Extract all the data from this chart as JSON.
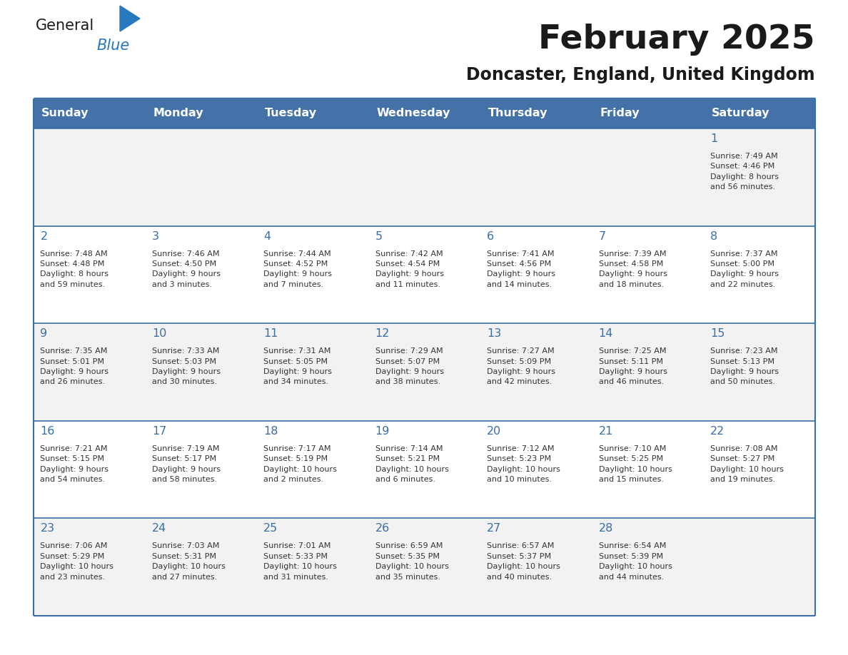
{
  "title": "February 2025",
  "subtitle": "Doncaster, England, United Kingdom",
  "days_of_week": [
    "Sunday",
    "Monday",
    "Tuesday",
    "Wednesday",
    "Thursday",
    "Friday",
    "Saturday"
  ],
  "header_bg": "#4472A8",
  "header_text": "#FFFFFF",
  "cell_bg_odd": "#F2F2F2",
  "cell_bg_even": "#FFFFFF",
  "border_color": "#3A6EA5",
  "day_number_color": "#3A6EA5",
  "text_color": "#333333",
  "logo_general_color": "#1a1a1a",
  "logo_blue_color": "#2878BE",
  "title_color": "#1a1a1a",
  "subtitle_color": "#1a1a1a",
  "calendar_data": [
    [
      {
        "day": "",
        "info": ""
      },
      {
        "day": "",
        "info": ""
      },
      {
        "day": "",
        "info": ""
      },
      {
        "day": "",
        "info": ""
      },
      {
        "day": "",
        "info": ""
      },
      {
        "day": "",
        "info": ""
      },
      {
        "day": "1",
        "info": "Sunrise: 7:49 AM\nSunset: 4:46 PM\nDaylight: 8 hours\nand 56 minutes."
      }
    ],
    [
      {
        "day": "2",
        "info": "Sunrise: 7:48 AM\nSunset: 4:48 PM\nDaylight: 8 hours\nand 59 minutes."
      },
      {
        "day": "3",
        "info": "Sunrise: 7:46 AM\nSunset: 4:50 PM\nDaylight: 9 hours\nand 3 minutes."
      },
      {
        "day": "4",
        "info": "Sunrise: 7:44 AM\nSunset: 4:52 PM\nDaylight: 9 hours\nand 7 minutes."
      },
      {
        "day": "5",
        "info": "Sunrise: 7:42 AM\nSunset: 4:54 PM\nDaylight: 9 hours\nand 11 minutes."
      },
      {
        "day": "6",
        "info": "Sunrise: 7:41 AM\nSunset: 4:56 PM\nDaylight: 9 hours\nand 14 minutes."
      },
      {
        "day": "7",
        "info": "Sunrise: 7:39 AM\nSunset: 4:58 PM\nDaylight: 9 hours\nand 18 minutes."
      },
      {
        "day": "8",
        "info": "Sunrise: 7:37 AM\nSunset: 5:00 PM\nDaylight: 9 hours\nand 22 minutes."
      }
    ],
    [
      {
        "day": "9",
        "info": "Sunrise: 7:35 AM\nSunset: 5:01 PM\nDaylight: 9 hours\nand 26 minutes."
      },
      {
        "day": "10",
        "info": "Sunrise: 7:33 AM\nSunset: 5:03 PM\nDaylight: 9 hours\nand 30 minutes."
      },
      {
        "day": "11",
        "info": "Sunrise: 7:31 AM\nSunset: 5:05 PM\nDaylight: 9 hours\nand 34 minutes."
      },
      {
        "day": "12",
        "info": "Sunrise: 7:29 AM\nSunset: 5:07 PM\nDaylight: 9 hours\nand 38 minutes."
      },
      {
        "day": "13",
        "info": "Sunrise: 7:27 AM\nSunset: 5:09 PM\nDaylight: 9 hours\nand 42 minutes."
      },
      {
        "day": "14",
        "info": "Sunrise: 7:25 AM\nSunset: 5:11 PM\nDaylight: 9 hours\nand 46 minutes."
      },
      {
        "day": "15",
        "info": "Sunrise: 7:23 AM\nSunset: 5:13 PM\nDaylight: 9 hours\nand 50 minutes."
      }
    ],
    [
      {
        "day": "16",
        "info": "Sunrise: 7:21 AM\nSunset: 5:15 PM\nDaylight: 9 hours\nand 54 minutes."
      },
      {
        "day": "17",
        "info": "Sunrise: 7:19 AM\nSunset: 5:17 PM\nDaylight: 9 hours\nand 58 minutes."
      },
      {
        "day": "18",
        "info": "Sunrise: 7:17 AM\nSunset: 5:19 PM\nDaylight: 10 hours\nand 2 minutes."
      },
      {
        "day": "19",
        "info": "Sunrise: 7:14 AM\nSunset: 5:21 PM\nDaylight: 10 hours\nand 6 minutes."
      },
      {
        "day": "20",
        "info": "Sunrise: 7:12 AM\nSunset: 5:23 PM\nDaylight: 10 hours\nand 10 minutes."
      },
      {
        "day": "21",
        "info": "Sunrise: 7:10 AM\nSunset: 5:25 PM\nDaylight: 10 hours\nand 15 minutes."
      },
      {
        "day": "22",
        "info": "Sunrise: 7:08 AM\nSunset: 5:27 PM\nDaylight: 10 hours\nand 19 minutes."
      }
    ],
    [
      {
        "day": "23",
        "info": "Sunrise: 7:06 AM\nSunset: 5:29 PM\nDaylight: 10 hours\nand 23 minutes."
      },
      {
        "day": "24",
        "info": "Sunrise: 7:03 AM\nSunset: 5:31 PM\nDaylight: 10 hours\nand 27 minutes."
      },
      {
        "day": "25",
        "info": "Sunrise: 7:01 AM\nSunset: 5:33 PM\nDaylight: 10 hours\nand 31 minutes."
      },
      {
        "day": "26",
        "info": "Sunrise: 6:59 AM\nSunset: 5:35 PM\nDaylight: 10 hours\nand 35 minutes."
      },
      {
        "day": "27",
        "info": "Sunrise: 6:57 AM\nSunset: 5:37 PM\nDaylight: 10 hours\nand 40 minutes."
      },
      {
        "day": "28",
        "info": "Sunrise: 6:54 AM\nSunset: 5:39 PM\nDaylight: 10 hours\nand 44 minutes."
      },
      {
        "day": "",
        "info": ""
      }
    ]
  ]
}
